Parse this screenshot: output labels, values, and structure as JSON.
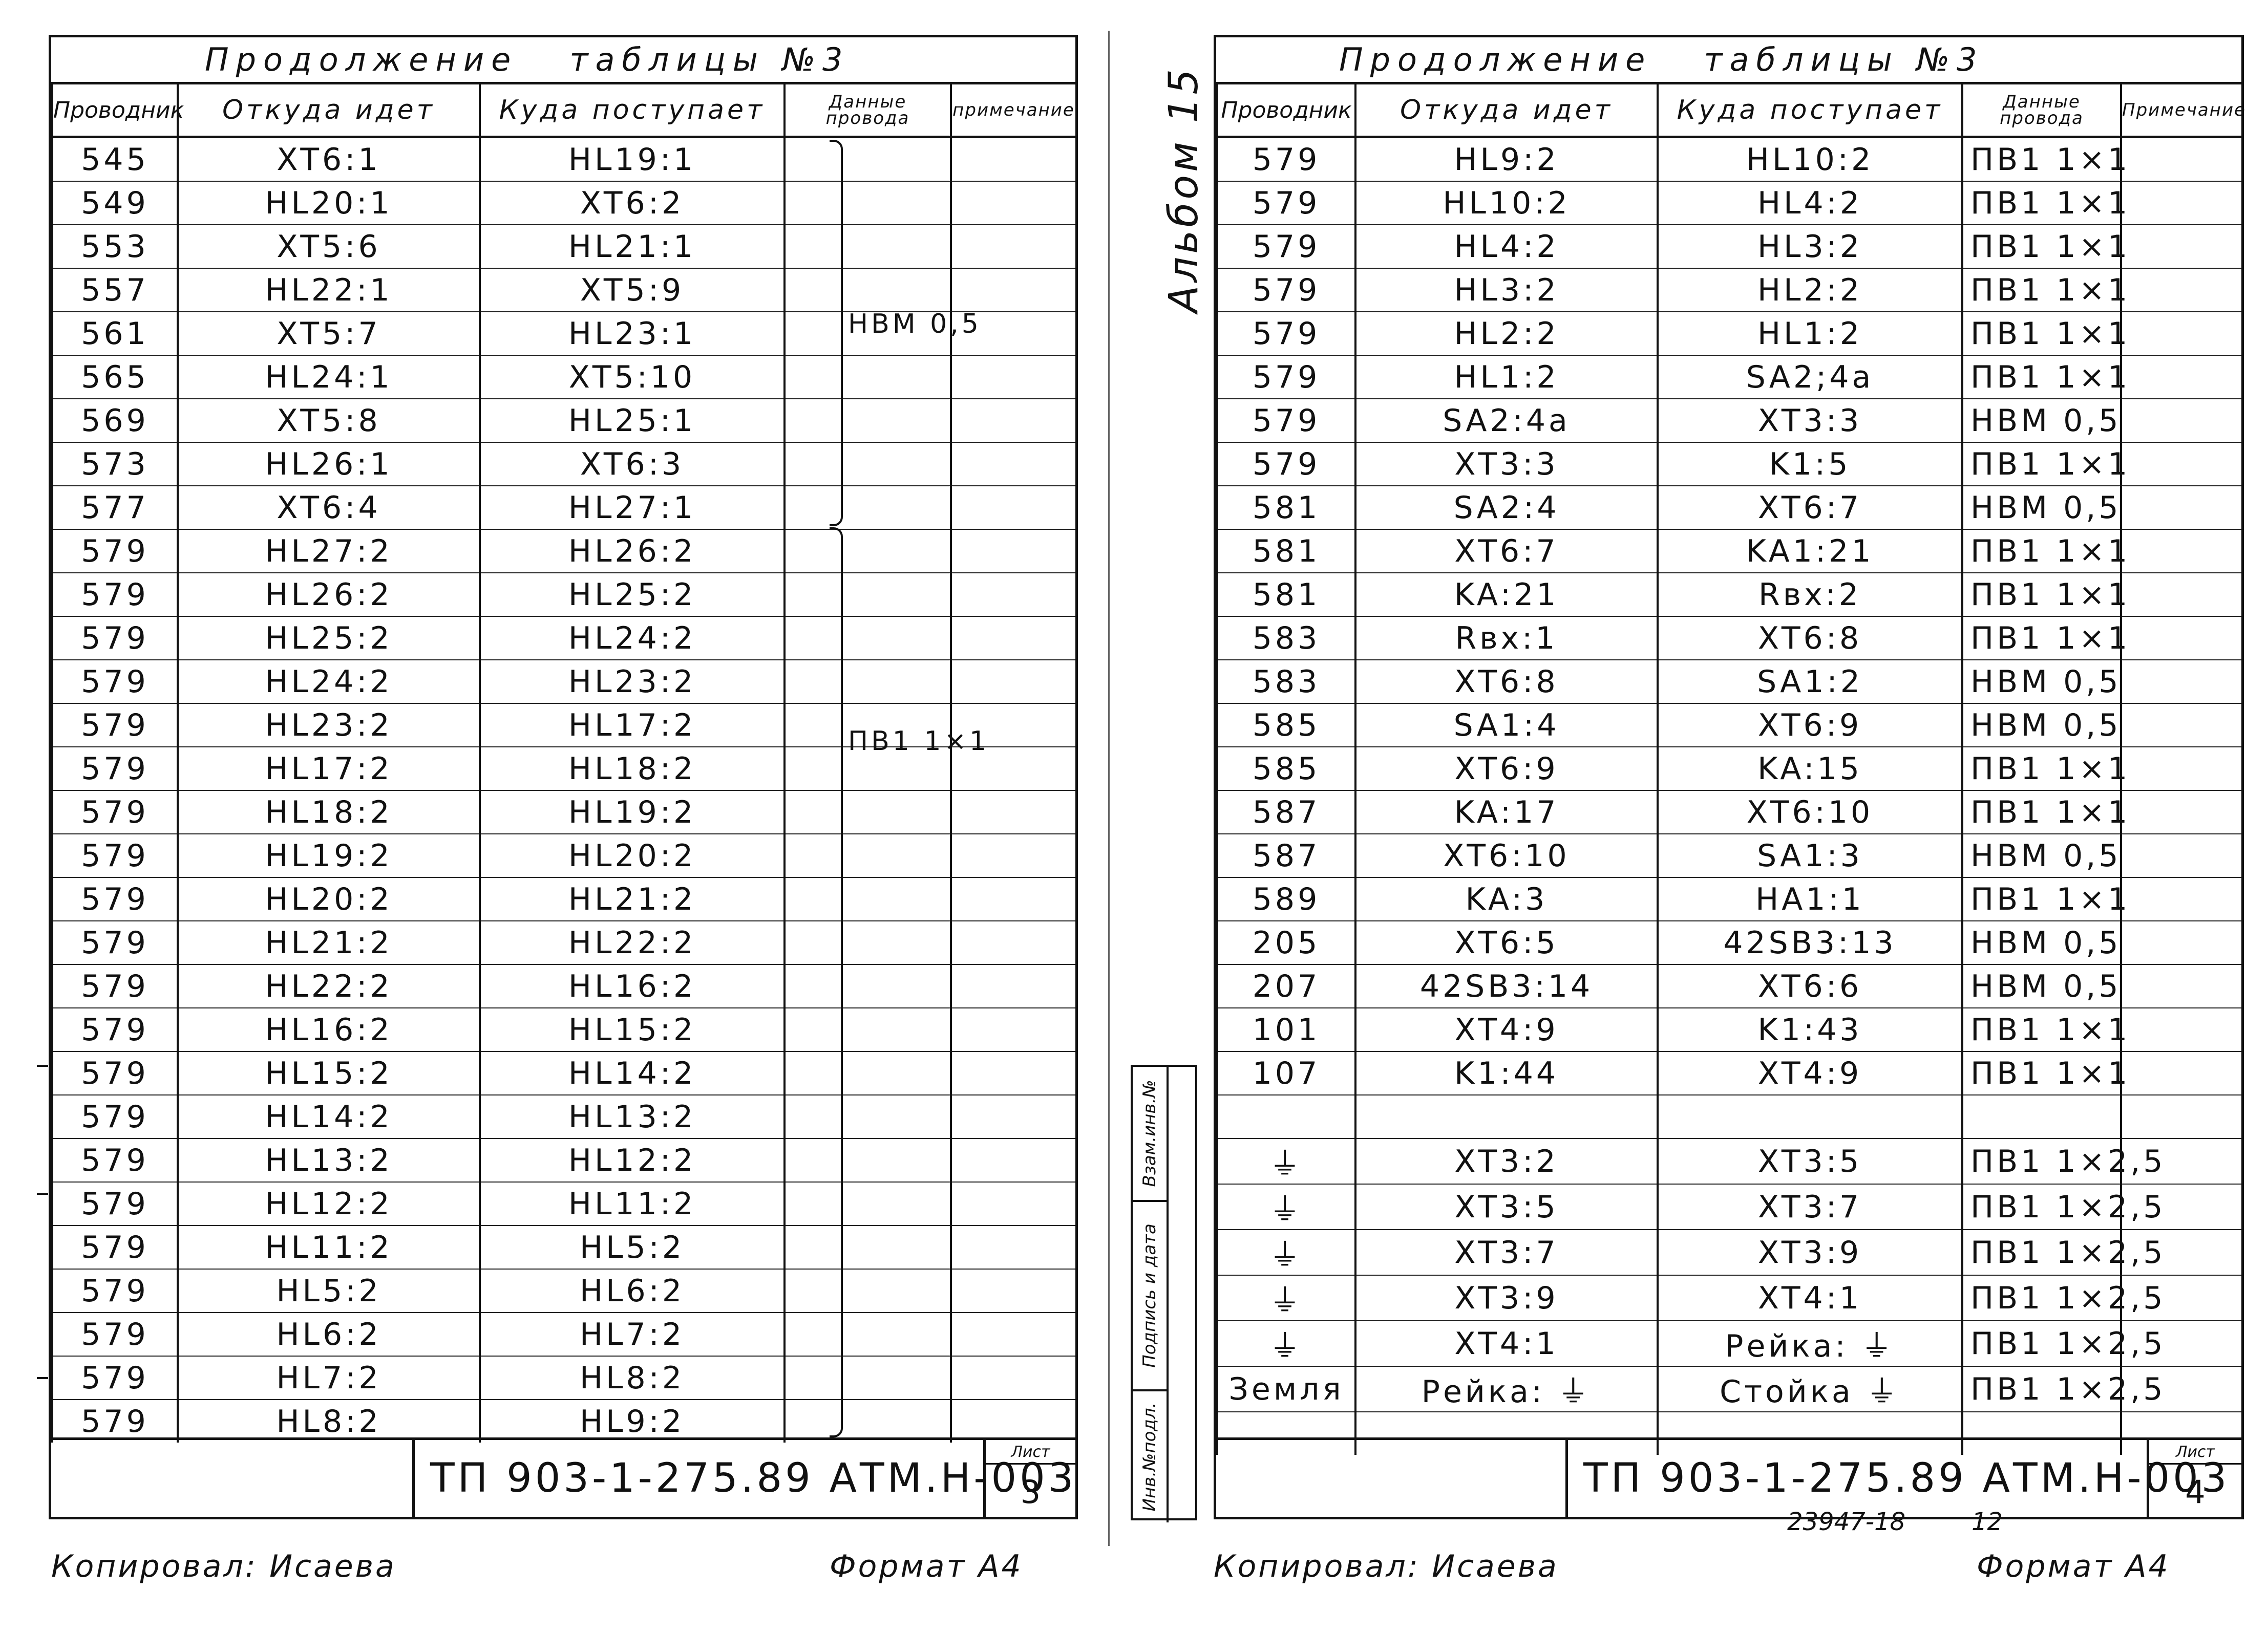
{
  "left": {
    "title": "Продолжение   таблицы №3",
    "headers": {
      "conductor": "Проводник",
      "from": "Откуда идет",
      "to": "Куда поступает",
      "wire": "Данные провода",
      "note": "примечание"
    },
    "rows": [
      {
        "conductor": "545",
        "from": "XT6:1",
        "to": "HL19:1"
      },
      {
        "conductor": "549",
        "from": "HL20:1",
        "to": "XT6:2"
      },
      {
        "conductor": "553",
        "from": "XT5:6",
        "to": "HL21:1"
      },
      {
        "conductor": "557",
        "from": "HL22:1",
        "to": "XT5:9"
      },
      {
        "conductor": "561",
        "from": "XT5:7",
        "to": "HL23:1"
      },
      {
        "conductor": "565",
        "from": "HL24:1",
        "to": "XT5:10"
      },
      {
        "conductor": "569",
        "from": "XT5:8",
        "to": "HL25:1"
      },
      {
        "conductor": "573",
        "from": "HL26:1",
        "to": "XT6:3"
      },
      {
        "conductor": "577",
        "from": "XT6:4",
        "to": "HL27:1"
      },
      {
        "conductor": "579",
        "from": "HL27:2",
        "to": "HL26:2"
      },
      {
        "conductor": "579",
        "from": "HL26:2",
        "to": "HL25:2"
      },
      {
        "conductor": "579",
        "from": "HL25:2",
        "to": "HL24:2"
      },
      {
        "conductor": "579",
        "from": "HL24:2",
        "to": "HL23:2"
      },
      {
        "conductor": "579",
        "from": "HL23:2",
        "to": "HL17:2"
      },
      {
        "conductor": "579",
        "from": "HL17:2",
        "to": "HL18:2"
      },
      {
        "conductor": "579",
        "from": "HL18:2",
        "to": "HL19:2"
      },
      {
        "conductor": "579",
        "from": "HL19:2",
        "to": "HL20:2"
      },
      {
        "conductor": "579",
        "from": "HL20:2",
        "to": "HL21:2"
      },
      {
        "conductor": "579",
        "from": "HL21:2",
        "to": "HL22:2"
      },
      {
        "conductor": "579",
        "from": "HL22:2",
        "to": "HL16:2"
      },
      {
        "conductor": "579",
        "from": "HL16:2",
        "to": "HL15:2"
      },
      {
        "conductor": "579",
        "from": "HL15:2",
        "to": "HL14:2"
      },
      {
        "conductor": "579",
        "from": "HL14:2",
        "to": "HL13:2"
      },
      {
        "conductor": "579",
        "from": "HL13:2",
        "to": "HL12:2"
      },
      {
        "conductor": "579",
        "from": "HL12:2",
        "to": "HL11:2"
      },
      {
        "conductor": "579",
        "from": "HL11:2",
        "to": "HL5:2"
      },
      {
        "conductor": "579",
        "from": "HL5:2",
        "to": "HL6:2"
      },
      {
        "conductor": "579",
        "from": "HL6:2",
        "to": "HL7:2"
      },
      {
        "conductor": "579",
        "from": "HL7:2",
        "to": "HL8:2"
      },
      {
        "conductor": "579",
        "from": "HL8:2",
        "to": "HL9:2"
      }
    ],
    "group1_wire": "НВМ 0,5",
    "group2_wire": "ПВ1 1×1",
    "doc_code": "ТП 903-1-275.89   АТМ.Н-003",
    "sheet_label": "Лист",
    "sheet_number": "3",
    "copied_by": "Копировал: Исаева",
    "format": "Формат А4"
  },
  "right": {
    "title": "Продолжение   таблицы №3",
    "album": "Альбом 15",
    "headers": {
      "conductor": "Проводник",
      "from": "Откуда идет",
      "to": "Куда поступает",
      "wire": "Данные провода",
      "note": "Примечание"
    },
    "rows": [
      {
        "conductor": "579",
        "from": "HL9:2",
        "to": "HL10:2",
        "wire": "ПВ1 1×1"
      },
      {
        "conductor": "579",
        "from": "HL10:2",
        "to": "HL4:2",
        "wire": "ПВ1 1×1"
      },
      {
        "conductor": "579",
        "from": "HL4:2",
        "to": "HL3:2",
        "wire": "ПВ1 1×1"
      },
      {
        "conductor": "579",
        "from": "HL3:2",
        "to": "HL2:2",
        "wire": "ПВ1 1×1"
      },
      {
        "conductor": "579",
        "from": "HL2:2",
        "to": "HL1:2",
        "wire": "ПВ1 1×1"
      },
      {
        "conductor": "579",
        "from": "HL1:2",
        "to": "SA2;4a",
        "wire": "ПВ1 1×1"
      },
      {
        "conductor": "579",
        "from": "SA2:4a",
        "to": "XT3:3",
        "wire": "НВМ 0,5"
      },
      {
        "conductor": "579",
        "from": "XT3:3",
        "to": "K1:5",
        "wire": "ПВ1 1×1"
      },
      {
        "conductor": "581",
        "from": "SA2:4",
        "to": "XT6:7",
        "wire": "НВМ 0,5"
      },
      {
        "conductor": "581",
        "from": "XT6:7",
        "to": "KA1:21",
        "wire": "ПВ1 1×1"
      },
      {
        "conductor": "581",
        "from": "KA:21",
        "to": "Rвх:2",
        "wire": "ПВ1 1×1"
      },
      {
        "conductor": "583",
        "from": "Rвх:1",
        "to": "XT6:8",
        "wire": "ПВ1 1×1"
      },
      {
        "conductor": "583",
        "from": "XT6:8",
        "to": "SA1:2",
        "wire": "НВМ 0,5"
      },
      {
        "conductor": "585",
        "from": "SA1:4",
        "to": "XT6:9",
        "wire": "НВМ 0,5"
      },
      {
        "conductor": "585",
        "from": "XT6:9",
        "to": "KA:15",
        "wire": "ПВ1 1×1"
      },
      {
        "conductor": "587",
        "from": "KA:17",
        "to": "XT6:10",
        "wire": "ПВ1 1×1"
      },
      {
        "conductor": "587",
        "from": "XT6:10",
        "to": "SA1:3",
        "wire": "НВМ 0,5"
      },
      {
        "conductor": "589",
        "from": "KA:3",
        "to": "HA1:1",
        "wire": "ПВ1 1×1"
      },
      {
        "conductor": "205",
        "from": "XT6:5",
        "to": "42SB3:13",
        "wire": "НВМ 0,5"
      },
      {
        "conductor": "207",
        "from": "42SB3:14",
        "to": "XT6:6",
        "wire": "НВМ 0,5"
      },
      {
        "conductor": "101",
        "from": "XT4:9",
        "to": "K1:43",
        "wire": "ПВ1 1×1"
      },
      {
        "conductor": "107",
        "from": "K1:44",
        "to": "XT4:9",
        "wire": "ПВ1 1×1"
      },
      {
        "conductor": "",
        "from": "",
        "to": "",
        "wire": ""
      },
      {
        "conductor": "⏚",
        "from": "XT3:2",
        "to": "XT3:5",
        "wire": "ПВ1 1×2,5"
      },
      {
        "conductor": "⏚",
        "from": "XT3:5",
        "to": "XT3:7",
        "wire": "ПВ1 1×2,5"
      },
      {
        "conductor": "⏚",
        "from": "XT3:7",
        "to": "XT3:9",
        "wire": "ПВ1 1×2,5"
      },
      {
        "conductor": "⏚",
        "from": "XT3:9",
        "to": "XT4:1",
        "wire": "ПВ1 1×2,5"
      },
      {
        "conductor": "⏚",
        "from": "XT4:1",
        "to": "Рейка: ⏚",
        "wire": "ПВ1 1×2,5"
      },
      {
        "conductor": "Земля",
        "from": "Рейка: ⏚",
        "to": "Стойка ⏚",
        "wire": "ПВ1 1×2,5"
      },
      {
        "conductor": "",
        "from": "",
        "to": "",
        "wire": ""
      }
    ],
    "strip": [
      "Инв.№подл.",
      "Подпись и дата",
      "Взам.инв.№"
    ],
    "doc_code": "ТП 903-1-275.89   АТМ.Н-003",
    "sheet_label": "Лист",
    "sheet_number": "4",
    "archive_no": "23947-18",
    "archive_page": "12",
    "copied_by": "Копировал: Исаева",
    "format": "Формат А4"
  }
}
